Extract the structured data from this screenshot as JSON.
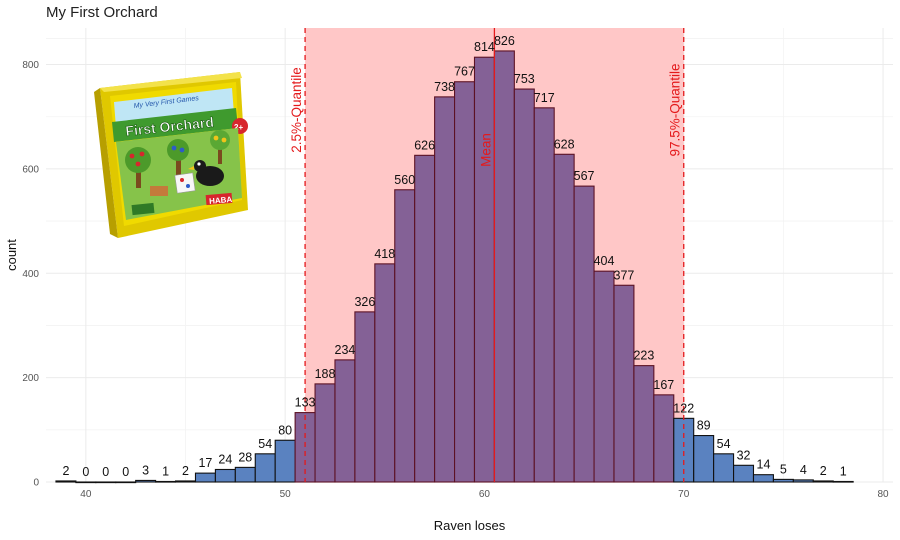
{
  "title": "My First Orchard",
  "chart_data": {
    "type": "bar",
    "title": "My First Orchard",
    "xlabel": "Raven loses",
    "ylabel": "count",
    "xlim": [
      38,
      80.5
    ],
    "ylim": [
      0,
      870
    ],
    "xticks": [
      40,
      50,
      60,
      70,
      80
    ],
    "yticks": [
      0,
      200,
      400,
      600,
      800
    ],
    "grid": true,
    "bins": [
      {
        "x": 39,
        "count": 2
      },
      {
        "x": 40,
        "count": 0
      },
      {
        "x": 41,
        "count": 0
      },
      {
        "x": 42,
        "count": 0
      },
      {
        "x": 43,
        "count": 3
      },
      {
        "x": 44,
        "count": 1
      },
      {
        "x": 45,
        "count": 2
      },
      {
        "x": 46,
        "count": 17
      },
      {
        "x": 47,
        "count": 24
      },
      {
        "x": 48,
        "count": 28
      },
      {
        "x": 49,
        "count": 54
      },
      {
        "x": 50,
        "count": 80
      },
      {
        "x": 51,
        "count": 133
      },
      {
        "x": 52,
        "count": 188
      },
      {
        "x": 53,
        "count": 234
      },
      {
        "x": 54,
        "count": 326
      },
      {
        "x": 55,
        "count": 418
      },
      {
        "x": 56,
        "count": 560
      },
      {
        "x": 57,
        "count": 626
      },
      {
        "x": 58,
        "count": 738
      },
      {
        "x": 59,
        "count": 767
      },
      {
        "x": 60,
        "count": 814
      },
      {
        "x": 61,
        "count": 826
      },
      {
        "x": 62,
        "count": 753
      },
      {
        "x": 63,
        "count": 717
      },
      {
        "x": 64,
        "count": 628
      },
      {
        "x": 65,
        "count": 567
      },
      {
        "x": 66,
        "count": 404
      },
      {
        "x": 67,
        "count": 377
      },
      {
        "x": 68,
        "count": 223
      },
      {
        "x": 69,
        "count": 167
      },
      {
        "x": 70,
        "count": 122
      },
      {
        "x": 71,
        "count": 89
      },
      {
        "x": 72,
        "count": 54
      },
      {
        "x": 73,
        "count": 32
      },
      {
        "x": 74,
        "count": 14
      },
      {
        "x": 75,
        "count": 5
      },
      {
        "x": 76,
        "count": 4
      },
      {
        "x": 77,
        "count": 2
      },
      {
        "x": 78,
        "count": 1
      }
    ],
    "bin_width": 1,
    "interval": {
      "lower": 51.0,
      "upper": 70.0
    },
    "mean": 60.5,
    "lines": [
      {
        "label": "2.5%-Quantile",
        "x": 51.0,
        "style": "dashed"
      },
      {
        "label": "Mean",
        "x": 60.5,
        "style": "solid"
      },
      {
        "label": "97.5%-Quantile",
        "x": 70.0,
        "style": "dashed"
      }
    ],
    "colors": {
      "bar_outside": "#5a82c0",
      "bar_inside": "#846196",
      "bar_edge_outside": "#111111",
      "bar_edge_inside": "#5c1224",
      "interval_fill": "#ffc7c7",
      "line": "#e41a1c",
      "grid": "#ebebeb"
    }
  },
  "box_image": {
    "label_top": "My Very First Games",
    "label_main": "First Orchard",
    "age_badge": "2+",
    "brand": "HABA"
  }
}
